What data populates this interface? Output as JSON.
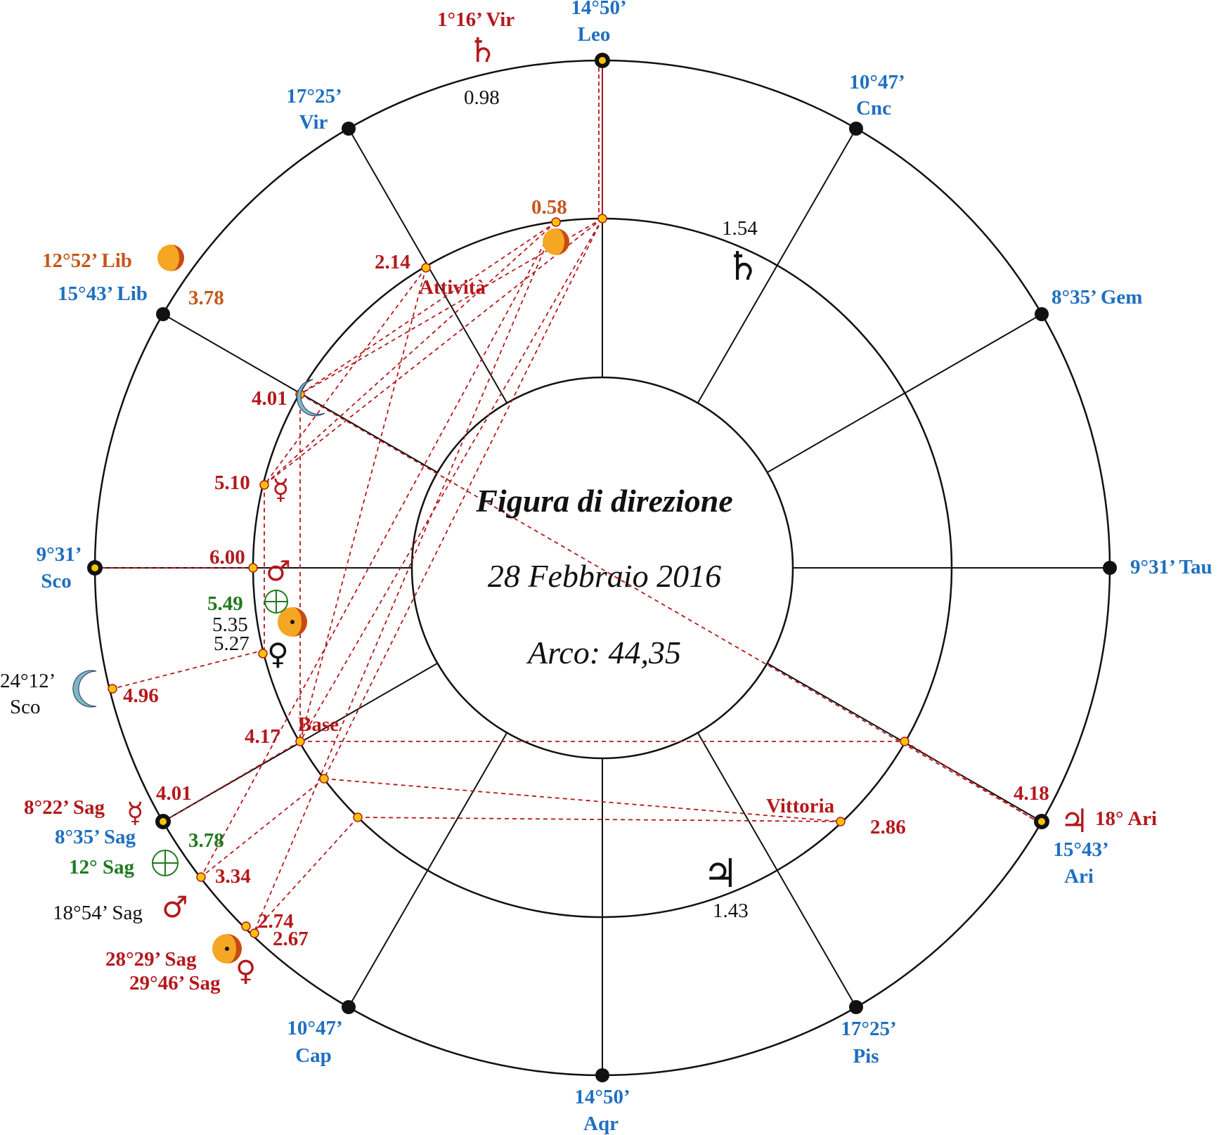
{
  "center": {
    "title": "Figura di direzione",
    "date": "28 Febbraio 2016",
    "arc": "Arco: 44,35"
  },
  "cusps": {
    "top": [
      "14°50’",
      "Leo"
    ],
    "cnc": [
      "10°47’",
      "Cnc"
    ],
    "gem": "8°35’ Gem",
    "tau": "9°31’ Tau",
    "ari": [
      "15°43’",
      "Ari"
    ],
    "pis": [
      "17°25’",
      "Pis"
    ],
    "bottom": [
      "14°50’",
      "Aqr"
    ],
    "cap": [
      "10°47’",
      "Cap"
    ],
    "sag": "8°35’ Sag",
    "sco": [
      "9°31’",
      "Sco"
    ],
    "lib": "15°43’ Lib",
    "vir": [
      "17°25’",
      "Vir"
    ]
  },
  "planets": {
    "saturn_outer": "1°16’ Vir",
    "sun_lib": "12°52’ Lib",
    "moon_sco": [
      "24°12’",
      "Sco"
    ],
    "mercury_sag": "8°22’ Sag",
    "earth_sag": "12° Sag",
    "mars_sag": "18°54’ Sag",
    "sun_sag": "28°29’ Sag",
    "venus_sag": "29°46’ Sag",
    "jupiter_ari": "18° Ari"
  },
  "values": {
    "saturn_outer": "0.98",
    "saturn_inner": "1.54",
    "sun_inner": "0.58",
    "attivita": "2.14",
    "sun_lib": "3.78",
    "moon": "4.01",
    "mercury": "5.10",
    "mars": "6.00",
    "earth": "5.49",
    "sun_mid": "5.35",
    "venus_mid": "5.27",
    "moon_sco": "4.96",
    "base": "4.17",
    "mercury_sag": "4.01",
    "earth_sag": "3.78",
    "mars_sag": "3.34",
    "sun_sag": "2.74",
    "venus_sag": "2.67",
    "vittoria": "2.86",
    "jupiter_inner": "1.43",
    "jupiter_ari": "4.18"
  },
  "tags": {
    "attivita": "Attività",
    "base": "Base",
    "vittoria": "Vittoria"
  },
  "glyphs": {
    "saturn": "♄",
    "jupiter": "♃",
    "mercury": "☿",
    "venus": "♀",
    "mars": "♂",
    "earth": "⊕"
  },
  "colors": {
    "cusp": "#1f6fc0",
    "value": "#b5181c",
    "sun_value": "#c6561a",
    "earth_value": "#1e7a1e",
    "line": "#b5181c",
    "marker": "#f5c400"
  }
}
